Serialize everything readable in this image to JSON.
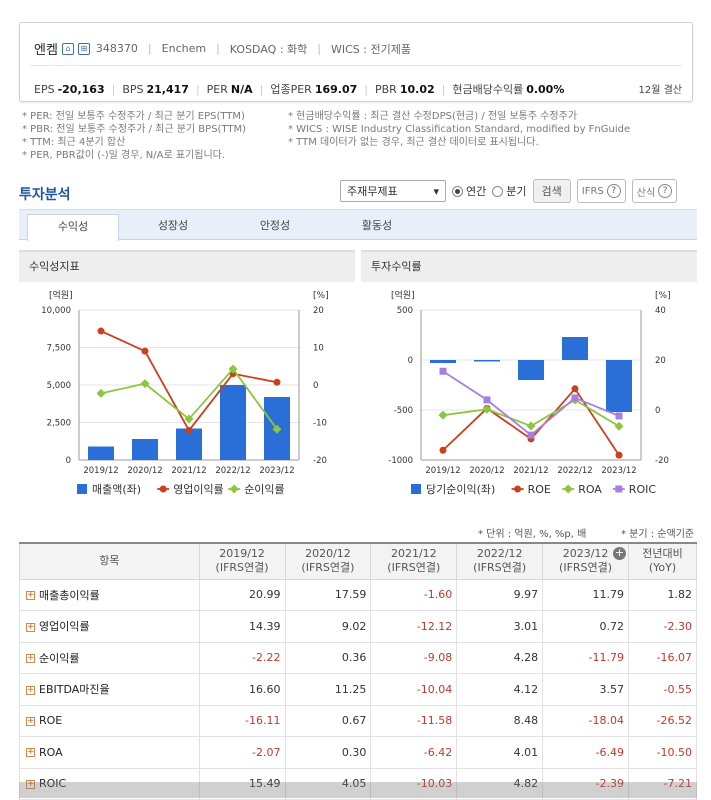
{
  "company": {
    "name": "엔켐",
    "code": "348370",
    "eng": "Enchem",
    "market": "KOSDAQ : 화학",
    "wics": "WICS : 전기제품",
    "icon1": "building-icon",
    "icon2": "home-icon"
  },
  "stats": [
    {
      "label": "EPS",
      "value": "-20,163"
    },
    {
      "label": "BPS",
      "value": "21,417"
    },
    {
      "label": "PER",
      "value": "N/A"
    },
    {
      "label": "업종PER",
      "value": "169.07"
    },
    {
      "label": "PBR",
      "value": "10.02"
    },
    {
      "label": "현금배당수익률",
      "value": "0.00%"
    }
  ],
  "fiscal": "12월 결산",
  "notes_left": [
    "* PER: 전일 보통주 수정주가 / 최근 분기 EPS(TTM)",
    "* PBR: 전일 보통주 수정주가 / 최근 분기 BPS(TTM)",
    "* TTM: 최근 4분기 합산",
    "* PER, PBR값이 (-)일 경우, N/A로 표기됩니다."
  ],
  "notes_right": [
    "* 현금배당수익률 : 최근 결산 수정DPS(현금) / 전일 보통주 수정주가",
    "* WICS : WISE Industry Classification Standard, modified by FnGuide",
    "* TTM 데이터가 없는 경우, 최근 결산 데이터로 표시됩니다."
  ],
  "section_title": "투자분석",
  "controls": {
    "select_value": "주재무제표",
    "radio_year": "연간",
    "radio_quarter": "분기",
    "search": "검색",
    "ifrs": "IFRS",
    "formula": "산식"
  },
  "tabs": [
    "수익성",
    "성장성",
    "안정성",
    "활동성"
  ],
  "chart1": {
    "title": "수익성지표",
    "left_unit": "[억원]",
    "right_unit": "[%]",
    "left_ticks": [
      "10,000",
      "7,500",
      "5,000",
      "2,500",
      "0"
    ],
    "right_ticks": [
      "20",
      "10",
      "0",
      "-10",
      "-20"
    ],
    "legend": [
      "매출액(좌)",
      "영업이익률",
      "순이익률"
    ]
  },
  "chart2": {
    "title": "투자수익률",
    "left_unit": "[억원]",
    "right_unit": "[%]",
    "left_ticks": [
      "500",
      "0",
      "-500",
      "-1000"
    ],
    "right_ticks": [
      "40",
      "20",
      "0",
      "-20"
    ],
    "legend": [
      "당기순이익(좌)",
      "ROE",
      "ROA",
      "ROIC"
    ]
  },
  "chart_data": [
    {
      "type": "bar",
      "title": "수익성지표",
      "categories": [
        "2019/12",
        "2020/12",
        "2021/12",
        "2022/12",
        "2023/12"
      ],
      "ylim_left": [
        0,
        10000
      ],
      "ylim_right": [
        -20,
        20
      ],
      "series": [
        {
          "name": "매출액(좌)",
          "type": "bar",
          "axis": "left",
          "values": [
            900,
            1400,
            2100,
            5000,
            4200
          ]
        },
        {
          "name": "영업이익률",
          "type": "line",
          "axis": "right",
          "values": [
            14.39,
            9.02,
            -12.12,
            3.01,
            0.72
          ]
        },
        {
          "name": "순이익률",
          "type": "line",
          "axis": "right",
          "values": [
            -2.22,
            0.36,
            -9.08,
            4.28,
            -11.79
          ]
        }
      ],
      "colors": {
        "bar": "#2a6fd8",
        "op": "#c8401d",
        "net": "#8cc63f"
      }
    },
    {
      "type": "bar",
      "title": "투자수익률",
      "categories": [
        "2019/12",
        "2020/12",
        "2021/12",
        "2022/12",
        "2023/12"
      ],
      "ylim_left": [
        -1000,
        500
      ],
      "ylim_right": [
        -20,
        40
      ],
      "series": [
        {
          "name": "당기순이익(좌)",
          "type": "bar",
          "axis": "left",
          "values": [
            -30,
            -10,
            -200,
            230,
            -520
          ]
        },
        {
          "name": "ROE",
          "type": "line",
          "axis": "right",
          "values": [
            -16.11,
            0.67,
            -11.58,
            8.48,
            -18.04
          ]
        },
        {
          "name": "ROA",
          "type": "line",
          "axis": "right",
          "values": [
            -2.07,
            0.3,
            -6.42,
            4.01,
            -6.49
          ]
        },
        {
          "name": "ROIC",
          "type": "line",
          "axis": "right",
          "values": [
            15.49,
            4.05,
            -10.03,
            4.82,
            -2.39
          ]
        }
      ],
      "colors": {
        "bar": "#2a6fd8",
        "roe": "#c8401d",
        "roa": "#8cc63f",
        "roic": "#a77fe0"
      }
    }
  ],
  "unit_note": "* 단위 : 억원, %, %p, 배",
  "quarter_note": "* 분기 : 순액기준",
  "table": {
    "header": [
      "항목",
      "2019/12\n(IFRS연결)",
      "2020/12\n(IFRS연결)",
      "2021/12\n(IFRS연결)",
      "2022/12\n(IFRS연결)",
      "2023/12\n(IFRS연결)",
      "전년대비\n(YoY)"
    ],
    "rows": [
      [
        "매출총이익률",
        "20.99",
        "17.59",
        "-1.60",
        "9.97",
        "11.79",
        "1.82"
      ],
      [
        "영업이익률",
        "14.39",
        "9.02",
        "-12.12",
        "3.01",
        "0.72",
        "-2.30"
      ],
      [
        "순이익률",
        "-2.22",
        "0.36",
        "-9.08",
        "4.28",
        "-11.79",
        "-16.07"
      ],
      [
        "EBITDA마진율",
        "16.60",
        "11.25",
        "-10.04",
        "4.12",
        "3.57",
        "-0.55"
      ],
      [
        "ROE",
        "-16.11",
        "0.67",
        "-11.58",
        "8.48",
        "-18.04",
        "-26.52"
      ],
      [
        "ROA",
        "-2.07",
        "0.30",
        "-6.42",
        "4.01",
        "-6.49",
        "-10.50"
      ],
      [
        "ROIC",
        "15.49",
        "4.05",
        "-10.03",
        "4.82",
        "-2.39",
        "-7.21"
      ]
    ]
  }
}
